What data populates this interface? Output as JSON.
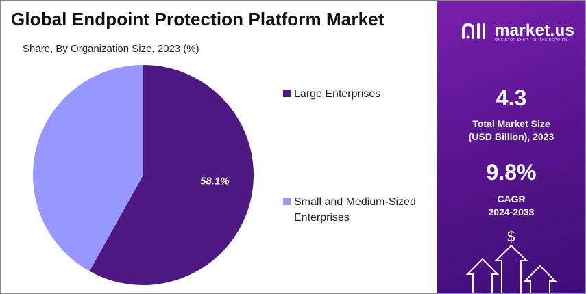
{
  "header": {
    "title": "Global Endpoint Protection Platform Market",
    "subtitle": "Share, By Organization Size, 2023 (%)"
  },
  "chart_data": {
    "type": "pie",
    "title": "Global Endpoint Protection Platform Market",
    "subtitle": "Share, By Organization Size, 2023 (%)",
    "categories": [
      "Large Enterprises",
      "Small and Medium-Sized Enterprises"
    ],
    "values": [
      58.1,
      41.9
    ],
    "data_labels": [
      "58.1%",
      ""
    ],
    "colors": [
      "#4e1882",
      "#9896ff"
    ],
    "legend_position": "right"
  },
  "legend": {
    "items": [
      {
        "label": "Large Enterprises",
        "color": "#4e1882"
      },
      {
        "label": "Small and Medium-Sized Enterprises",
        "color": "#9896ff"
      }
    ]
  },
  "side_panel": {
    "brand": "market.us",
    "tagline": "ONE STOP SHOP FOR THE REPORTS",
    "market_size_value": "4.3",
    "market_size_label_1": "Total Market Size",
    "market_size_label_2": "(USD Billion), 2023",
    "cagr_value": "9.8%",
    "cagr_label_1": "CAGR",
    "cagr_label_2": "2024-2033",
    "currency_symbol": "$",
    "icon": "rising-arrows-icon"
  }
}
